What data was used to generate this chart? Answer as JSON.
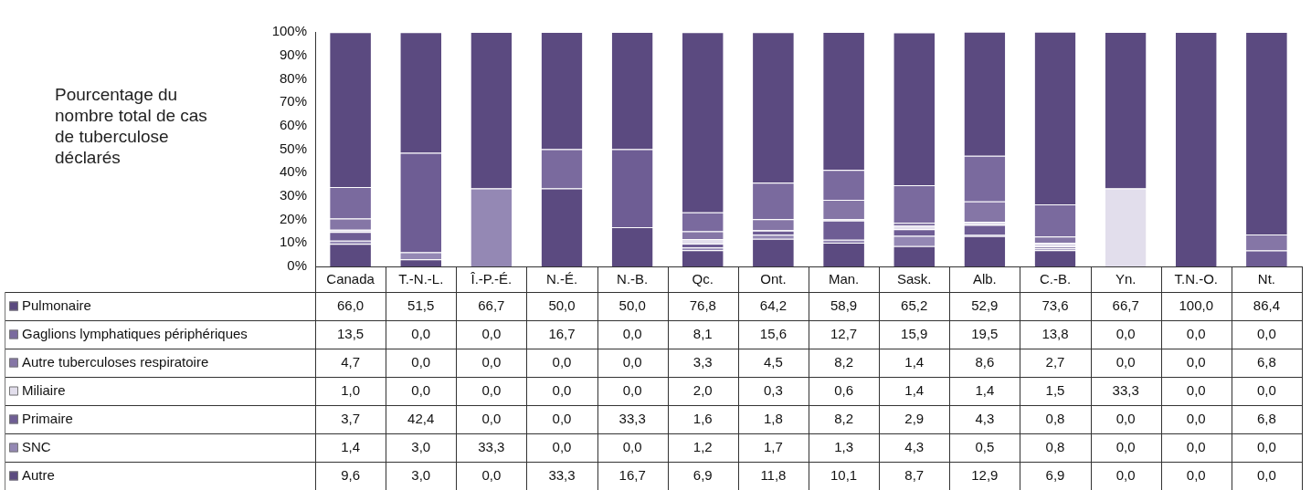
{
  "chart_data": {
    "type": "bar",
    "stacked": true,
    "ylabel": "Pourcentage du nombre total de cas de tuberculose déclarés",
    "categories": [
      "Canada",
      "T.-N.-L.",
      "Î.-P.-É.",
      "N.-É.",
      "N.-B.",
      "Qc.",
      "Ont.",
      "Man.",
      "Sask.",
      "Alb.",
      "C.-B.",
      "Yn.",
      "T.N.-O.",
      "Nt."
    ],
    "series": [
      {
        "name": "Autre",
        "color": "#5b4a80",
        "values": [
          9.6,
          3.0,
          0.0,
          33.3,
          16.7,
          6.9,
          11.8,
          10.1,
          8.7,
          12.9,
          6.9,
          0.0,
          0.0,
          0.0
        ],
        "value_labels": [
          "9,6",
          "3,0",
          "0,0",
          "33,3",
          "16,7",
          "6,9",
          "11,8",
          "10,1",
          "8,7",
          "12,9",
          "6,9",
          "0,0",
          "0,0",
          "0,0"
        ]
      },
      {
        "name": "SNC",
        "color": "#9488b4",
        "values": [
          1.4,
          3.0,
          33.3,
          0.0,
          0.0,
          1.2,
          1.7,
          1.3,
          4.3,
          0.5,
          0.8,
          0.0,
          0.0,
          0.0
        ],
        "value_labels": [
          "1,4",
          "3,0",
          "33,3",
          "0,0",
          "0,0",
          "1,2",
          "1,7",
          "1,3",
          "4,3",
          "0,5",
          "0,8",
          "0,0",
          "0,0",
          "0,0"
        ]
      },
      {
        "name": "Primaire",
        "color": "#6e5d94",
        "values": [
          3.7,
          42.4,
          0.0,
          0.0,
          33.3,
          1.6,
          1.8,
          8.2,
          2.9,
          4.3,
          0.8,
          0.0,
          0.0,
          6.8
        ],
        "value_labels": [
          "3,7",
          "42,4",
          "0,0",
          "0,0",
          "33,3",
          "1,6",
          "1,8",
          "8,2",
          "2,9",
          "4,3",
          "0,8",
          "0,0",
          "0,0",
          "6,8"
        ]
      },
      {
        "name": "Miliaire",
        "color": "#e2deec",
        "values": [
          1.0,
          0.0,
          0.0,
          0.0,
          0.0,
          2.0,
          0.3,
          0.6,
          1.4,
          1.4,
          1.5,
          33.3,
          0.0,
          0.0
        ],
        "value_labels": [
          "1,0",
          "0,0",
          "0,0",
          "0,0",
          "0,0",
          "2,0",
          "0,3",
          "0,6",
          "1,4",
          "1,4",
          "1,5",
          "33,3",
          "0,0",
          "0,0"
        ]
      },
      {
        "name": "Autre tuberculoses respiratoire",
        "color": "#8576a6",
        "values": [
          4.7,
          0.0,
          0.0,
          0.0,
          0.0,
          3.3,
          4.5,
          8.2,
          1.4,
          8.6,
          2.7,
          0.0,
          0.0,
          6.8
        ],
        "value_labels": [
          "4,7",
          "0,0",
          "0,0",
          "0,0",
          "0,0",
          "3,3",
          "4,5",
          "8,2",
          "1,4",
          "8,6",
          "2,7",
          "0,0",
          "0,0",
          "6,8"
        ]
      },
      {
        "name": "Gaglions lymphatiques périphériques",
        "color": "#7a6a9e",
        "values": [
          13.5,
          0.0,
          0.0,
          16.7,
          0.0,
          8.1,
          15.6,
          12.7,
          15.9,
          19.5,
          13.8,
          0.0,
          0.0,
          0.0
        ],
        "value_labels": [
          "13,5",
          "0,0",
          "0,0",
          "16,7",
          "0,0",
          "8,1",
          "15,6",
          "12,7",
          "15,9",
          "19,5",
          "13,8",
          "0,0",
          "0,0",
          "0,0"
        ]
      },
      {
        "name": "Pulmonaire",
        "color": "#5b4a80",
        "values": [
          66.0,
          51.5,
          66.7,
          50.0,
          50.0,
          76.8,
          64.2,
          58.9,
          65.2,
          52.9,
          73.6,
          66.7,
          100.0,
          86.4
        ],
        "value_labels": [
          "66,0",
          "51,5",
          "66,7",
          "50,0",
          "50,0",
          "76,8",
          "64,2",
          "58,9",
          "65,2",
          "52,9",
          "73,6",
          "66,7",
          "100,0",
          "86,4"
        ]
      }
    ],
    "ylim": [
      0,
      100
    ],
    "yticks": [
      {
        "value": 0,
        "label": "0%"
      },
      {
        "value": 10,
        "label": "10%"
      },
      {
        "value": 20,
        "label": "20%"
      },
      {
        "value": 30,
        "label": "30%"
      },
      {
        "value": 40,
        "label": "40%"
      },
      {
        "value": 50,
        "label": "50%"
      },
      {
        "value": 60,
        "label": "60%"
      },
      {
        "value": 70,
        "label": "70%"
      },
      {
        "value": 80,
        "label": "80%"
      },
      {
        "value": 90,
        "label": "90%"
      },
      {
        "value": 100,
        "label": "100%"
      }
    ],
    "grid": false,
    "legend": "bottom"
  }
}
